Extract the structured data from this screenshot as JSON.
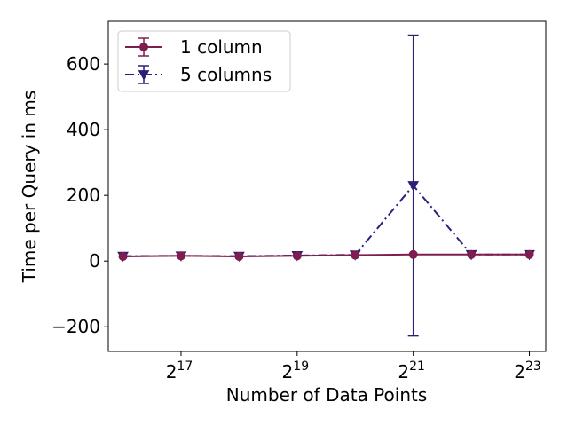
{
  "chart_data": {
    "type": "line",
    "xlabel": "Number of Data Points",
    "ylabel": "Time per Query in ms",
    "x_scale": "log2",
    "x": [
      65536,
      131072,
      262144,
      524288,
      1048576,
      2097152,
      4194304,
      8388608
    ],
    "x_ticks": [
      {
        "value": 131072,
        "base": "2",
        "exp": "17"
      },
      {
        "value": 524288,
        "base": "2",
        "exp": "19"
      },
      {
        "value": 2097152,
        "base": "2",
        "exp": "21"
      },
      {
        "value": 8388608,
        "base": "2",
        "exp": "23"
      }
    ],
    "y_ticks": [
      {
        "value": -200,
        "label": "−200"
      },
      {
        "value": 0,
        "label": "0"
      },
      {
        "value": 200,
        "label": "200"
      },
      {
        "value": 400,
        "label": "400"
      },
      {
        "value": 600,
        "label": "600"
      }
    ],
    "xlim": [
      55000,
      10200000
    ],
    "ylim": [
      -275,
      730
    ],
    "grid": false,
    "legend_position": "top-left",
    "series": [
      {
        "name": "1 column",
        "values": [
          14,
          16,
          14,
          16,
          18,
          20,
          20,
          20
        ],
        "errors": [
          0,
          0,
          0,
          0,
          0,
          0,
          0,
          0
        ],
        "color": "#7f1d4e",
        "linestyle": "solid",
        "marker": "circle",
        "error_cap_x": 2048,
        "error_low": 2,
        "error_high": 38
      },
      {
        "name": "5 columns",
        "values": [
          15,
          16,
          15,
          17,
          19,
          230,
          20,
          20
        ],
        "errors": [
          0,
          0,
          0,
          0,
          0,
          458,
          0,
          0
        ],
        "color": "#2d1e78",
        "linestyle": "dashdot",
        "marker": "triangle-down"
      }
    ]
  }
}
